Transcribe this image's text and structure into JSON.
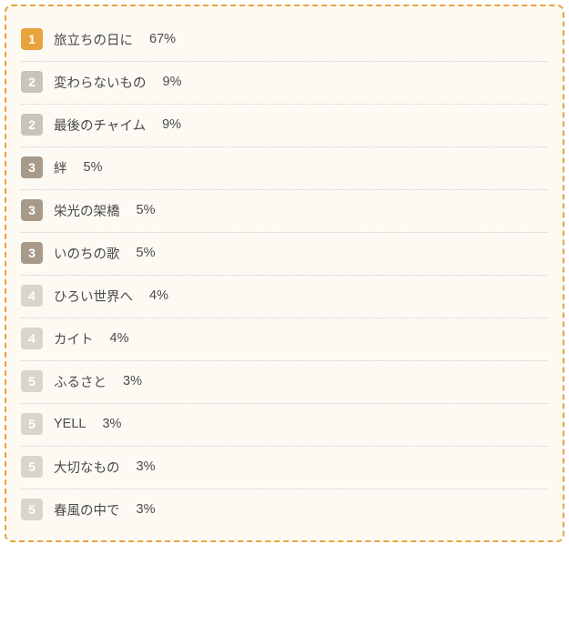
{
  "styling": {
    "container_border_color": "#e8a33d",
    "container_bg": "#fdfaf4",
    "divider_color": "#cccccc",
    "text_color": "#4a4a4a",
    "badge_text_color": "#ffffff",
    "rank_colors": {
      "1": "#e8a33d",
      "2": "#c8c4bb",
      "3": "#a89a8a",
      "4": "#d9d5cc",
      "5": "#d9d5cc"
    }
  },
  "items": [
    {
      "rank": "1",
      "title": "旅立ちの日に",
      "percent": "67%"
    },
    {
      "rank": "2",
      "title": "変わらないもの",
      "percent": "9%"
    },
    {
      "rank": "2",
      "title": "最後のチャイム",
      "percent": "9%"
    },
    {
      "rank": "3",
      "title": "絆",
      "percent": "5%"
    },
    {
      "rank": "3",
      "title": "栄光の架橋",
      "percent": "5%"
    },
    {
      "rank": "3",
      "title": "いのちの歌",
      "percent": "5%"
    },
    {
      "rank": "4",
      "title": "ひろい世界へ",
      "percent": "4%"
    },
    {
      "rank": "4",
      "title": "カイト",
      "percent": "4%"
    },
    {
      "rank": "5",
      "title": "ふるさと",
      "percent": "3%"
    },
    {
      "rank": "5",
      "title": "YELL",
      "percent": "3%"
    },
    {
      "rank": "5",
      "title": "大切なもの",
      "percent": "3%"
    },
    {
      "rank": "5",
      "title": "春風の中で",
      "percent": "3%"
    }
  ]
}
